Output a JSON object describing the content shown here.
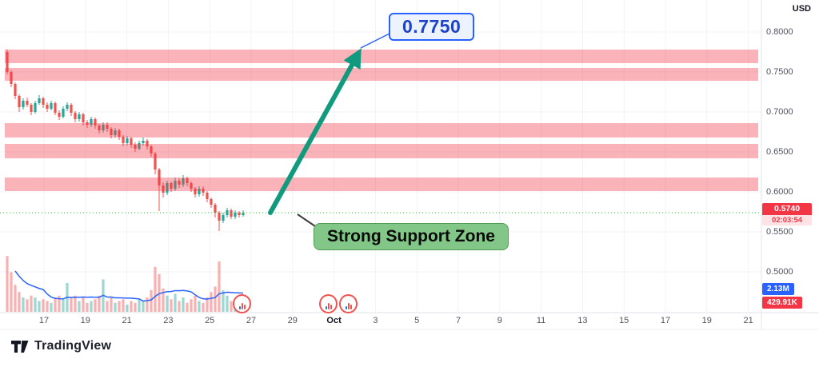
{
  "price_axis": {
    "currency_label": "USD",
    "tick_labels": [
      "0.8000",
      "0.7500",
      "0.7000",
      "0.6500",
      "0.6000",
      "0.5500",
      "0.5000"
    ],
    "tick_prices": [
      0.8,
      0.75,
      0.7,
      0.65,
      0.6,
      0.55,
      0.5
    ],
    "current_price_badge": {
      "value": "0.5740",
      "countdown": "02:03:54",
      "color": "#f23645"
    },
    "volume_badges": [
      {
        "label": "2.13M",
        "color": "#2962ff"
      },
      {
        "label": "429.91K",
        "color": "#f23645"
      }
    ]
  },
  "time_axis": {
    "labels": [
      "17",
      "19",
      "21",
      "23",
      "25",
      "27",
      "29",
      "Oct",
      "3",
      "5",
      "7",
      "9",
      "11",
      "13",
      "15",
      "17",
      "19",
      "21"
    ],
    "emphasized_index": 7
  },
  "annotations": {
    "target_price_label": "0.7750",
    "support_zone_label": "Strong Support Zone"
  },
  "branding": {
    "logo_text": "TradingView"
  },
  "icons": {
    "event_marker": "bar-chart-event-icon",
    "logo_mark": "tradingview-logo-icon"
  },
  "chart_data": {
    "type": "candlestick",
    "title": "",
    "ylabel": "USD",
    "price_range_visible": [
      0.45,
      0.84
    ],
    "current_price": 0.574,
    "countdown": "02:03:54",
    "grid": true,
    "colors": {
      "up": "#26a69a",
      "down": "#ef5350",
      "volume_ma": "#2962ff",
      "prev_close_line": "#4caf50",
      "arrow": "#129a7f",
      "zone": "#f23645"
    },
    "zones": {
      "color": "#f23645",
      "opacity": 0.38,
      "bands": [
        [
          0.761,
          0.778
        ],
        [
          0.739,
          0.755
        ],
        [
          0.668,
          0.686
        ],
        [
          0.642,
          0.66
        ],
        [
          0.601,
          0.618
        ]
      ]
    },
    "arrow": {
      "from_price": 0.574,
      "to_price": 0.778,
      "target_label": "0.7750"
    },
    "candles": [
      [
        0.775,
        0.778,
        0.747,
        0.75
      ],
      [
        0.75,
        0.752,
        0.731,
        0.735
      ],
      [
        0.735,
        0.737,
        0.716,
        0.72
      ],
      [
        0.72,
        0.722,
        0.7,
        0.706
      ],
      [
        0.706,
        0.717,
        0.703,
        0.714
      ],
      [
        0.714,
        0.718,
        0.706,
        0.709
      ],
      [
        0.709,
        0.711,
        0.696,
        0.7
      ],
      [
        0.7,
        0.714,
        0.698,
        0.711
      ],
      [
        0.711,
        0.721,
        0.709,
        0.717
      ],
      [
        0.717,
        0.719,
        0.705,
        0.709
      ],
      [
        0.709,
        0.712,
        0.7,
        0.704
      ],
      [
        0.704,
        0.714,
        0.702,
        0.711
      ],
      [
        0.711,
        0.713,
        0.696,
        0.699
      ],
      [
        0.699,
        0.702,
        0.69,
        0.694
      ],
      [
        0.694,
        0.707,
        0.692,
        0.704
      ],
      [
        0.704,
        0.712,
        0.701,
        0.709
      ],
      [
        0.709,
        0.711,
        0.695,
        0.699
      ],
      [
        0.699,
        0.701,
        0.687,
        0.691
      ],
      [
        0.691,
        0.7,
        0.688,
        0.697
      ],
      [
        0.697,
        0.699,
        0.683,
        0.687
      ],
      [
        0.687,
        0.69,
        0.68,
        0.684
      ],
      [
        0.684,
        0.694,
        0.681,
        0.691
      ],
      [
        0.691,
        0.693,
        0.679,
        0.683
      ],
      [
        0.683,
        0.685,
        0.673,
        0.677
      ],
      [
        0.677,
        0.687,
        0.674,
        0.684
      ],
      [
        0.684,
        0.687,
        0.675,
        0.679
      ],
      [
        0.679,
        0.681,
        0.667,
        0.671
      ],
      [
        0.671,
        0.68,
        0.668,
        0.677
      ],
      [
        0.677,
        0.679,
        0.665,
        0.669
      ],
      [
        0.669,
        0.671,
        0.657,
        0.661
      ],
      [
        0.661,
        0.67,
        0.658,
        0.667
      ],
      [
        0.667,
        0.669,
        0.655,
        0.659
      ],
      [
        0.659,
        0.662,
        0.65,
        0.654
      ],
      [
        0.654,
        0.664,
        0.652,
        0.661
      ],
      [
        0.661,
        0.668,
        0.658,
        0.664
      ],
      [
        0.664,
        0.666,
        0.653,
        0.657
      ],
      [
        0.657,
        0.659,
        0.644,
        0.648
      ],
      [
        0.648,
        0.65,
        0.622,
        0.628
      ],
      [
        0.628,
        0.63,
        0.576,
        0.608
      ],
      [
        0.608,
        0.612,
        0.593,
        0.599
      ],
      [
        0.599,
        0.614,
        0.596,
        0.611
      ],
      [
        0.611,
        0.613,
        0.6,
        0.604
      ],
      [
        0.604,
        0.618,
        0.601,
        0.614
      ],
      [
        0.614,
        0.617,
        0.605,
        0.609
      ],
      [
        0.609,
        0.621,
        0.606,
        0.617
      ],
      [
        0.617,
        0.619,
        0.607,
        0.611
      ],
      [
        0.611,
        0.613,
        0.6,
        0.604
      ],
      [
        0.604,
        0.606,
        0.593,
        0.597
      ],
      [
        0.597,
        0.607,
        0.594,
        0.604
      ],
      [
        0.604,
        0.607,
        0.595,
        0.599
      ],
      [
        0.599,
        0.601,
        0.587,
        0.591
      ],
      [
        0.591,
        0.593,
        0.58,
        0.584
      ],
      [
        0.584,
        0.586,
        0.568,
        0.574
      ],
      [
        0.574,
        0.576,
        0.551,
        0.564
      ],
      [
        0.564,
        0.574,
        0.561,
        0.571
      ],
      [
        0.571,
        0.58,
        0.568,
        0.577
      ],
      [
        0.577,
        0.579,
        0.566,
        0.569
      ],
      [
        0.569,
        0.577,
        0.566,
        0.574
      ],
      [
        0.574,
        0.576,
        0.568,
        0.571
      ],
      [
        0.571,
        0.577,
        0.569,
        0.574
      ]
    ],
    "volumes": [
      3.1,
      2.2,
      1.5,
      1.1,
      0.8,
      0.7,
      0.9,
      0.8,
      0.6,
      0.7,
      0.6,
      0.5,
      0.8,
      0.9,
      0.7,
      1.6,
      0.8,
      0.9,
      0.6,
      0.8,
      0.5,
      0.6,
      0.7,
      0.9,
      1.8,
      0.6,
      0.8,
      0.5,
      0.6,
      0.7,
      0.4,
      0.6,
      0.5,
      0.7,
      0.6,
      0.8,
      1.2,
      2.5,
      2.1,
      1.3,
      0.9,
      0.7,
      1.0,
      0.6,
      0.8,
      0.5,
      0.7,
      0.9,
      0.6,
      0.5,
      0.8,
      1.1,
      1.4,
      2.8,
      1.2,
      0.9,
      0.6,
      0.7,
      0.5,
      0.43
    ],
    "volume_unit": "M",
    "last_volume_label": "429.91K",
    "volume_ma_label": "2.13M"
  }
}
